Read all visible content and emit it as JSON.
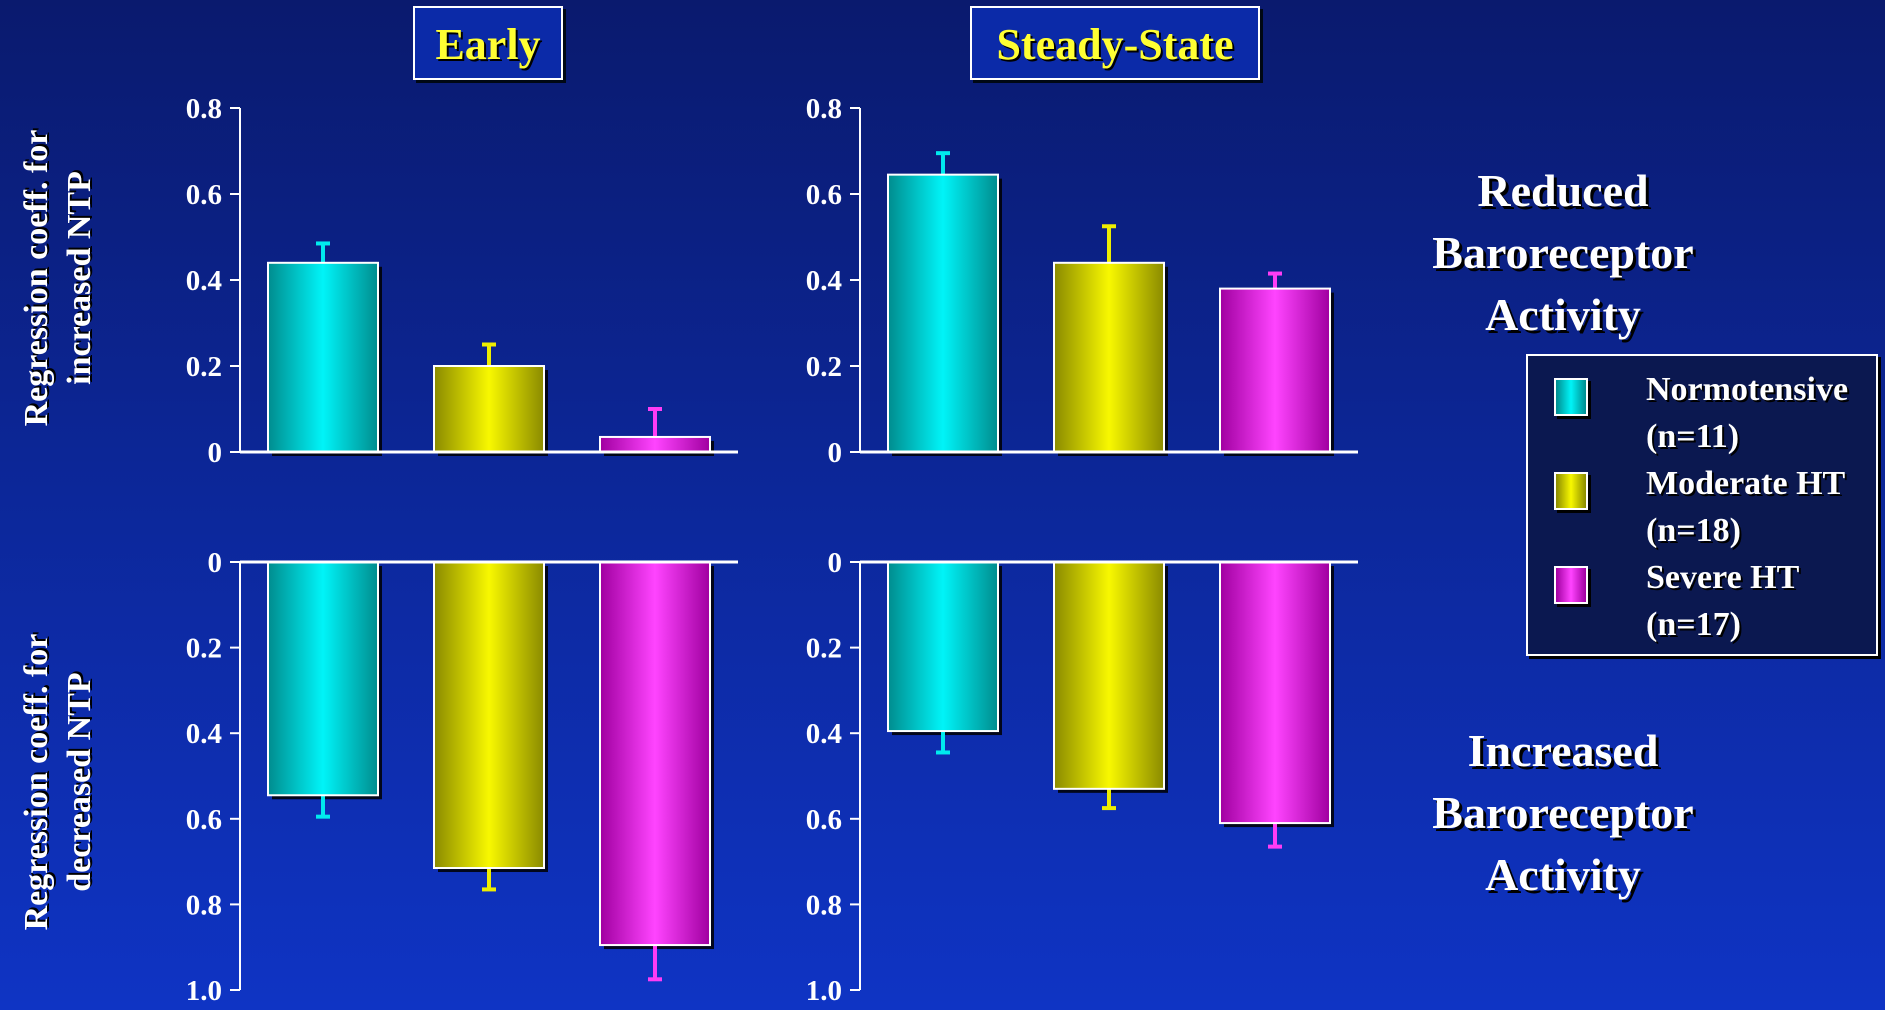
{
  "colors": {
    "normotensive": "#00eaee",
    "moderate": "#eeee00",
    "severe": "#ff3cf5",
    "axis": "#ffffff"
  },
  "titles": {
    "early": "Early",
    "steady": "Steady-State"
  },
  "ylabels": {
    "top": "Regression coeff. for increased NTP",
    "bottom": "Regression coeff. for decreased NTP"
  },
  "side_labels": {
    "top": "Reduced Baroreceptor Activity",
    "bottom": "Increased Baroreceptor Activity"
  },
  "legend": [
    {
      "label": "Normotensive (n=11)",
      "color_key": "normotensive"
    },
    {
      "label": "Moderate HT (n=18)",
      "color_key": "moderate"
    },
    {
      "label": "Severe HT (n=17)",
      "color_key": "severe"
    }
  ],
  "chart_data": [
    {
      "type": "bar",
      "panel": "top-left",
      "title": "Early",
      "ylabel": "Regression coeff. for increased NTP",
      "ylim": [
        0,
        0.8
      ],
      "yticks": [
        "0",
        "0.2",
        "0.4",
        "0.6",
        "0.8"
      ],
      "direction": "up",
      "series": [
        {
          "name": "Normotensive (n=11)",
          "value": 0.44,
          "error": 0.045
        },
        {
          "name": "Moderate HT (n=18)",
          "value": 0.2,
          "error": 0.05
        },
        {
          "name": "Severe HT (n=17)",
          "value": 0.035,
          "error": 0.065
        }
      ]
    },
    {
      "type": "bar",
      "panel": "top-right",
      "title": "Steady-State",
      "ylim": [
        0,
        0.8
      ],
      "yticks": [
        "0",
        "0.2",
        "0.4",
        "0.6",
        "0.8"
      ],
      "direction": "up",
      "series": [
        {
          "name": "Normotensive (n=11)",
          "value": 0.645,
          "error": 0.05
        },
        {
          "name": "Moderate HT (n=18)",
          "value": 0.44,
          "error": 0.085
        },
        {
          "name": "Severe HT (n=17)",
          "value": 0.38,
          "error": 0.035
        }
      ]
    },
    {
      "type": "bar",
      "panel": "bottom-left",
      "ylabel": "Regression coeff. for decreased NTP",
      "ylim": [
        0,
        1.0
      ],
      "yticks": [
        "0",
        "0.2",
        "0.4",
        "0.6",
        "0.8",
        "1.0"
      ],
      "direction": "down",
      "series": [
        {
          "name": "Normotensive (n=11)",
          "value": 0.545,
          "error": 0.05
        },
        {
          "name": "Moderate HT (n=18)",
          "value": 0.715,
          "error": 0.05
        },
        {
          "name": "Severe HT (n=17)",
          "value": 0.895,
          "error": 0.08
        }
      ]
    },
    {
      "type": "bar",
      "panel": "bottom-right",
      "ylim": [
        0,
        1.0
      ],
      "yticks": [
        "0",
        "0.2",
        "0.4",
        "0.6",
        "0.8",
        "1.0"
      ],
      "direction": "down",
      "series": [
        {
          "name": "Normotensive (n=11)",
          "value": 0.395,
          "error": 0.05
        },
        {
          "name": "Moderate HT (n=18)",
          "value": 0.53,
          "error": 0.045
        },
        {
          "name": "Severe HT (n=17)",
          "value": 0.61,
          "error": 0.055
        }
      ]
    }
  ]
}
